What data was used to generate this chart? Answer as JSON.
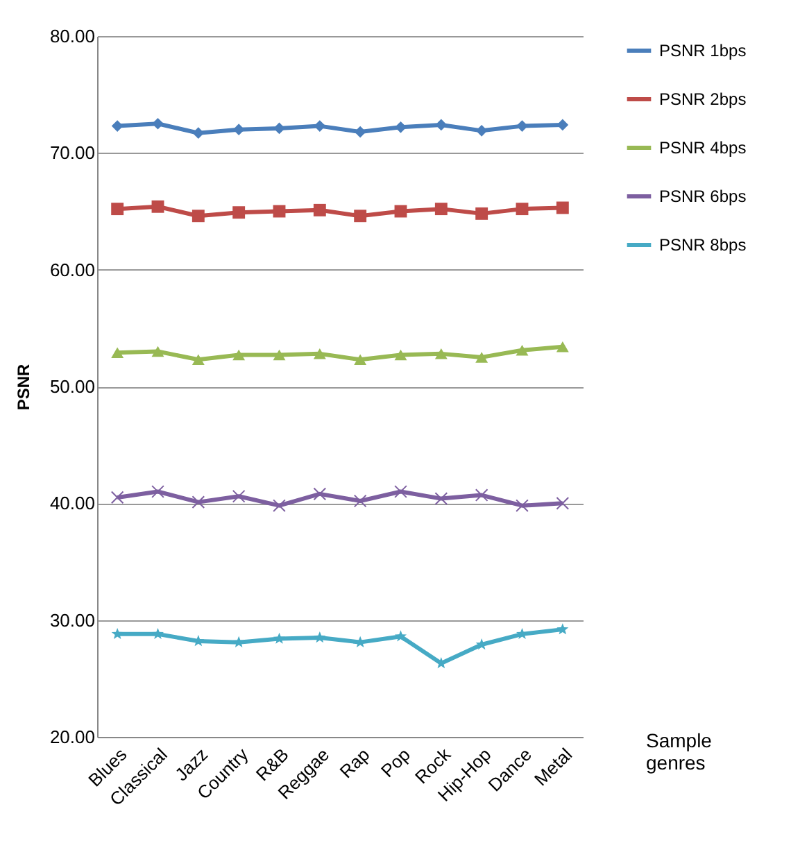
{
  "chart_data": {
    "type": "line",
    "xlabel": "Sample genres",
    "ylabel": "PSNR",
    "categories": [
      "Blues",
      "Classical",
      "Jazz",
      "Country",
      "R&B",
      "Reggae",
      "Rap",
      "Pop",
      "Rock",
      "Hip-Hop",
      "Dance",
      "Metal"
    ],
    "series": [
      {
        "name": "PSNR 1bps",
        "color": "#4a7ebb",
        "marker": "diamond",
        "values": [
          72.3,
          72.5,
          71.7,
          72.0,
          72.1,
          72.3,
          71.8,
          72.2,
          72.4,
          71.9,
          72.3,
          72.4
        ]
      },
      {
        "name": "PSNR 2bps",
        "color": "#be4b48",
        "marker": "square",
        "values": [
          65.2,
          65.4,
          64.6,
          64.9,
          65.0,
          65.1,
          64.6,
          65.0,
          65.2,
          64.8,
          65.2,
          65.3
        ]
      },
      {
        "name": "PSNR 4bps",
        "color": "#98b954",
        "marker": "triangle",
        "values": [
          52.9,
          53.0,
          52.3,
          52.7,
          52.7,
          52.8,
          52.3,
          52.7,
          52.8,
          52.5,
          53.1,
          53.4
        ]
      },
      {
        "name": "PSNR 6bps",
        "color": "#7d5fa0",
        "marker": "cross",
        "values": [
          40.5,
          41.0,
          40.1,
          40.6,
          39.8,
          40.8,
          40.2,
          41.0,
          40.4,
          40.7,
          39.8,
          40.0
        ]
      },
      {
        "name": "PSNR 8bps",
        "color": "#46aac5",
        "marker": "star",
        "values": [
          28.8,
          28.8,
          28.2,
          28.1,
          28.4,
          28.5,
          28.1,
          28.6,
          26.3,
          27.9,
          28.8,
          29.2
        ]
      }
    ],
    "ylim": [
      20,
      80
    ],
    "yticks": [
      {
        "value": 20,
        "label": "20.00"
      },
      {
        "value": 30,
        "label": "30.00"
      },
      {
        "value": 40,
        "label": "40.00"
      },
      {
        "value": 50,
        "label": "50.00"
      },
      {
        "value": 60,
        "label": "60.00"
      },
      {
        "value": 70,
        "label": "70.00"
      },
      {
        "value": 80,
        "label": "80.00"
      }
    ],
    "grid": "y",
    "legend": "right",
    "line_style": "solid"
  }
}
